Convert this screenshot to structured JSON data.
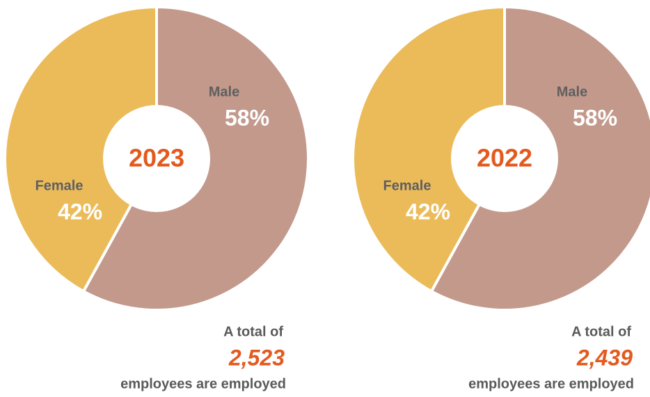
{
  "chart_data": [
    {
      "type": "pie",
      "center_label": "2023",
      "categories": [
        "Male",
        "Female"
      ],
      "values": [
        58,
        42
      ],
      "value_labels": [
        "58%",
        "42%"
      ],
      "colors": [
        "#c3998c",
        "#ebbb5a"
      ],
      "total_prefix": "A total of",
      "total": "2,523",
      "total_suffix": "employees are employed"
    },
    {
      "type": "pie",
      "center_label": "2022",
      "categories": [
        "Male",
        "Female"
      ],
      "values": [
        58,
        42
      ],
      "value_labels": [
        "58%",
        "42%"
      ],
      "colors": [
        "#c3998c",
        "#ebbb5a"
      ],
      "total_prefix": "A total of",
      "total": "2,439",
      "total_suffix": "employees are employed"
    }
  ]
}
